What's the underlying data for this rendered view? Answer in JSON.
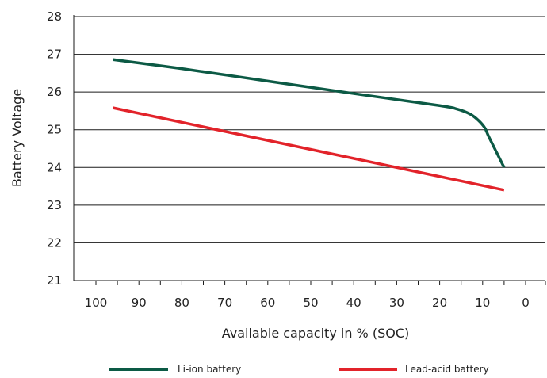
{
  "chart_data": {
    "type": "line",
    "title": "",
    "xlabel": "Available capacity in % (SOC)",
    "ylabel": "Battery Voltage",
    "xlim": [
      100,
      0
    ],
    "ylim": [
      21,
      28
    ],
    "x_ticks": [
      "100",
      "90",
      "80",
      "70",
      "60",
      "50",
      "40",
      "30",
      "20",
      "10",
      "0"
    ],
    "y_ticks": [
      "21",
      "22",
      "23",
      "24",
      "25",
      "26",
      "27",
      "28"
    ],
    "grid": "horizontal",
    "legend": "bottom",
    "series": [
      {
        "name": "Li-ion battery",
        "color": "#0c5a45",
        "x": [
          96,
          80,
          60,
          40,
          20,
          16,
          13,
          11,
          9.5,
          8.5,
          5
        ],
        "y": [
          26.86,
          26.62,
          26.29,
          25.96,
          25.64,
          25.55,
          25.42,
          25.25,
          25.05,
          24.8,
          24.0
        ]
      },
      {
        "name": "Lead-acid battery",
        "color": "#e2232a",
        "x": [
          96,
          5
        ],
        "y": [
          25.58,
          23.4
        ]
      }
    ]
  }
}
